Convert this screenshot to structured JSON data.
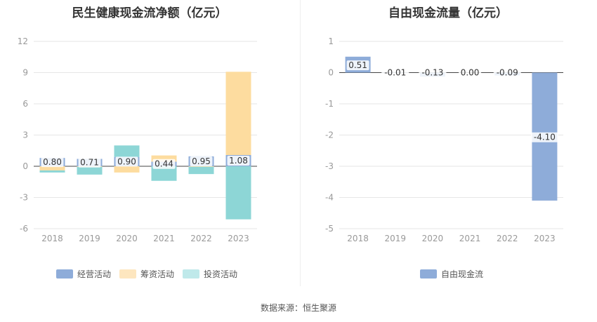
{
  "footer": "数据来源：恒生聚源",
  "chart_data": [
    {
      "type": "bar",
      "stacked": true,
      "title": "民生健康现金流净额（亿元）",
      "categories": [
        "2018",
        "2019",
        "2020",
        "2021",
        "2022",
        "2023"
      ],
      "ylim": [
        -6,
        12
      ],
      "yticks": [
        12,
        9,
        6,
        3,
        0,
        -3,
        -6
      ],
      "grid": true,
      "legend_position": "bottom",
      "series": [
        {
          "name": "经营活动",
          "color": "#8eacd9",
          "values": [
            0.8,
            0.71,
            0.9,
            0.44,
            0.95,
            1.08
          ]
        },
        {
          "name": "筹资活动",
          "color": "#fddc9f",
          "values": [
            -0.4,
            -0.05,
            -0.6,
            0.6,
            -0.05,
            8.0
          ]
        },
        {
          "name": "投资活动",
          "color": "#8dd6d6",
          "values": [
            -0.2,
            -0.75,
            1.1,
            -1.4,
            -0.7,
            -5.1
          ]
        }
      ],
      "data_labels": [
        "0.80",
        "0.71",
        "0.90",
        "0.44",
        "0.95",
        "1.08"
      ]
    },
    {
      "type": "bar",
      "title": "自由现金流量（亿元）",
      "categories": [
        "2018",
        "2019",
        "2020",
        "2021",
        "2022",
        "2023"
      ],
      "ylim": [
        -5,
        1
      ],
      "yticks": [
        1,
        0,
        -1,
        -2,
        -3,
        -4,
        -5
      ],
      "grid": true,
      "legend_position": "bottom",
      "series": [
        {
          "name": "自由现金流",
          "color": "#8eacd9",
          "values": [
            0.51,
            -0.01,
            -0.13,
            0.0,
            -0.09,
            -4.1
          ]
        }
      ],
      "data_labels": [
        "0.51",
        "-0.01",
        "-0.13",
        "0.00",
        "-0.09",
        "-4.10"
      ]
    }
  ]
}
